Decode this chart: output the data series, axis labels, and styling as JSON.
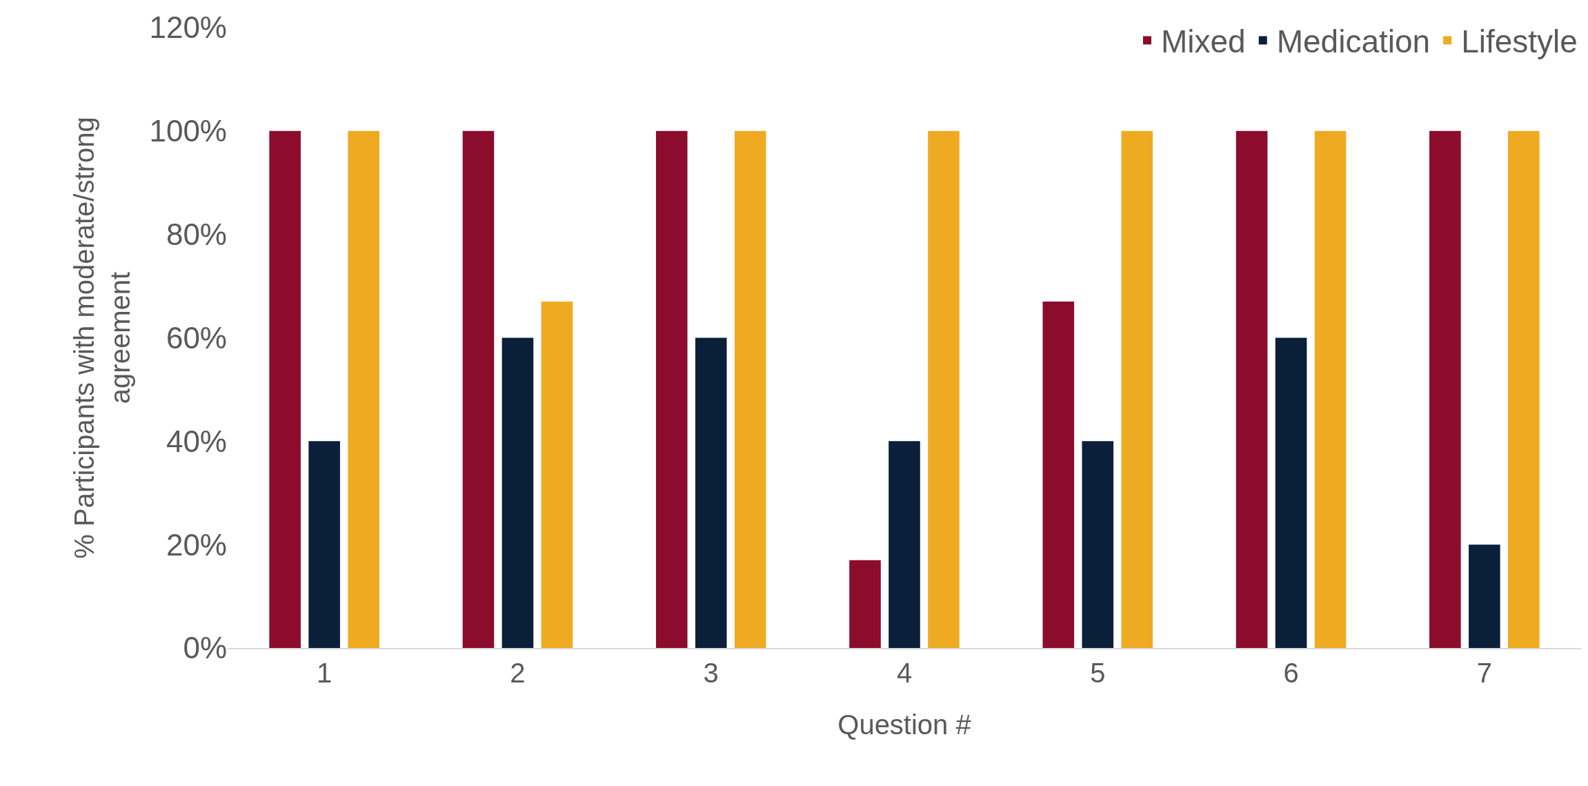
{
  "chart_data": {
    "type": "bar",
    "xlabel": "Question #",
    "ylabel": "% Participants with moderate/strong agreement",
    "categories": [
      "1",
      "2",
      "3",
      "4",
      "5",
      "6",
      "7"
    ],
    "series": [
      {
        "name": "Mixed",
        "color": "#8c0c2d",
        "values": [
          100,
          100,
          100,
          17,
          67,
          100,
          100
        ]
      },
      {
        "name": "Medication",
        "color": "#0a1f3a",
        "values": [
          40,
          60,
          60,
          40,
          40,
          60,
          20
        ]
      },
      {
        "name": "Lifestyle",
        "color": "#eeab22",
        "values": [
          100,
          67,
          100,
          100,
          100,
          100,
          100
        ]
      }
    ],
    "ylim": [
      0,
      120
    ],
    "yticks": [
      {
        "value": 0,
        "label": "0%"
      },
      {
        "value": 20,
        "label": "20%"
      },
      {
        "value": 40,
        "label": "40%"
      },
      {
        "value": 60,
        "label": "60%"
      },
      {
        "value": 80,
        "label": "80%"
      },
      {
        "value": 100,
        "label": "100%"
      },
      {
        "value": 120,
        "label": "120%"
      }
    ],
    "legend": "top right"
  }
}
